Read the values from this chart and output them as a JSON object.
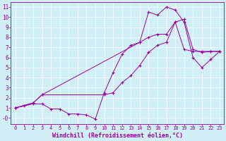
{
  "title": "",
  "xlabel": "Windchill (Refroidissement éolien,°C)",
  "ylabel": "",
  "bg_color": "#d0eef5",
  "line_color": "#990099",
  "xlim": [
    -0.5,
    23.5
  ],
  "ylim": [
    -0.6,
    11.5
  ],
  "xticks": [
    0,
    1,
    2,
    3,
    4,
    5,
    6,
    7,
    8,
    9,
    10,
    11,
    12,
    13,
    14,
    15,
    16,
    17,
    18,
    19,
    20,
    21,
    22,
    23
  ],
  "yticks": [
    0,
    1,
    2,
    3,
    4,
    5,
    6,
    7,
    8,
    9,
    10,
    11
  ],
  "ytick_labels": [
    "-0",
    "1",
    "2",
    "3",
    "4",
    "5",
    "6",
    "7",
    "8",
    "9",
    "10",
    "11"
  ],
  "curve1_x": [
    0,
    1,
    2,
    3,
    4,
    5,
    6,
    7,
    8,
    9,
    10,
    11,
    12,
    13,
    14,
    15,
    16,
    17,
    18,
    19,
    20,
    21,
    22,
    23
  ],
  "curve1_y": [
    1.0,
    1.2,
    1.4,
    1.4,
    0.9,
    0.9,
    0.4,
    0.4,
    0.3,
    -0.1,
    2.5,
    4.5,
    6.3,
    7.2,
    7.5,
    8.0,
    8.3,
    8.3,
    9.5,
    6.8,
    6.6,
    6.6,
    6.6,
    6.6
  ],
  "curve2_x": [
    0,
    2,
    3,
    10,
    11,
    12,
    13,
    14,
    15,
    16,
    17,
    18,
    19,
    20,
    21,
    22,
    23
  ],
  "curve2_y": [
    1.0,
    1.5,
    2.3,
    2.3,
    2.5,
    3.5,
    4.2,
    5.2,
    6.5,
    7.2,
    7.5,
    9.5,
    9.8,
    6.8,
    6.5,
    6.6,
    6.6
  ],
  "curve3_x": [
    0,
    2,
    3,
    14,
    15,
    16,
    17,
    18,
    19,
    20,
    21,
    22,
    23
  ],
  "curve3_y": [
    1.0,
    1.5,
    2.3,
    7.5,
    10.5,
    10.2,
    11.0,
    10.7,
    9.5,
    6.0,
    5.0,
    5.8,
    6.6
  ]
}
